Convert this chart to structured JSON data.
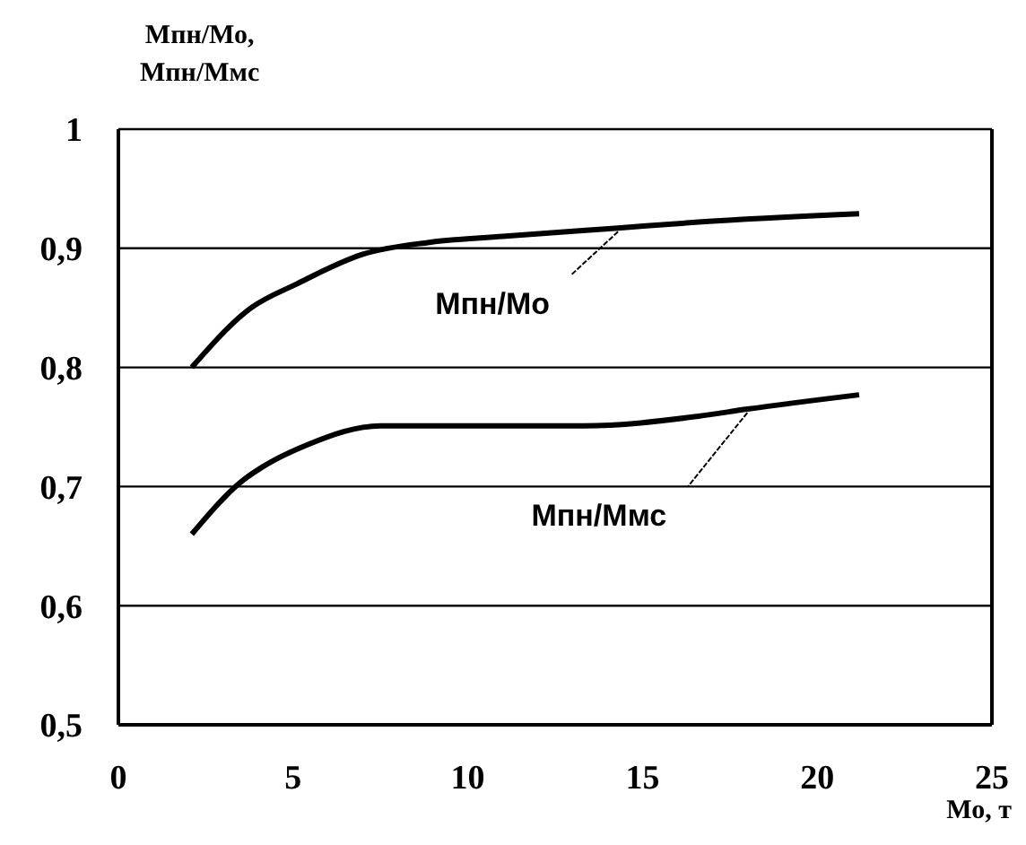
{
  "chart_data": {
    "type": "line",
    "ylabel": "Мпн/Мо, Мпн/Ммс",
    "xlabel": "Мо, т",
    "xlim": [
      0,
      25
    ],
    "xticks": [
      0,
      5,
      10,
      15,
      20,
      25
    ],
    "ylim": [
      0.5,
      1
    ],
    "yticks": [
      {
        "value": 0.5,
        "label": "0,5"
      },
      {
        "value": 0.6,
        "label": "0,6"
      },
      {
        "value": 0.7,
        "label": "0,7"
      },
      {
        "value": 0.8,
        "label": "0,8"
      },
      {
        "value": 0.9,
        "label": "0,9"
      },
      {
        "value": 1,
        "label": "1"
      }
    ],
    "grid": "y",
    "legend": false,
    "marker": "none",
    "line_style": "solid",
    "series": [
      {
        "name": "Мпн/Мо",
        "color": "#000000",
        "x": [
          2.1,
          3.8,
          5.1,
          7.0,
          8.9,
          11.0,
          14.3,
          16.6,
          21.2
        ],
        "values": [
          0.8,
          0.85,
          0.87,
          0.895,
          0.905,
          0.91,
          0.917,
          0.922,
          0.929
        ]
      },
      {
        "name": "Мпн/Ммс",
        "color": "#000000",
        "x": [
          2.1,
          3.6,
          4.1,
          5.4,
          7.5,
          13.3,
          16.6,
          18.0,
          21.2
        ],
        "values": [
          0.66,
          0.706,
          0.716,
          0.735,
          0.751,
          0.751,
          0.759,
          0.765,
          0.777
        ]
      }
    ]
  }
}
